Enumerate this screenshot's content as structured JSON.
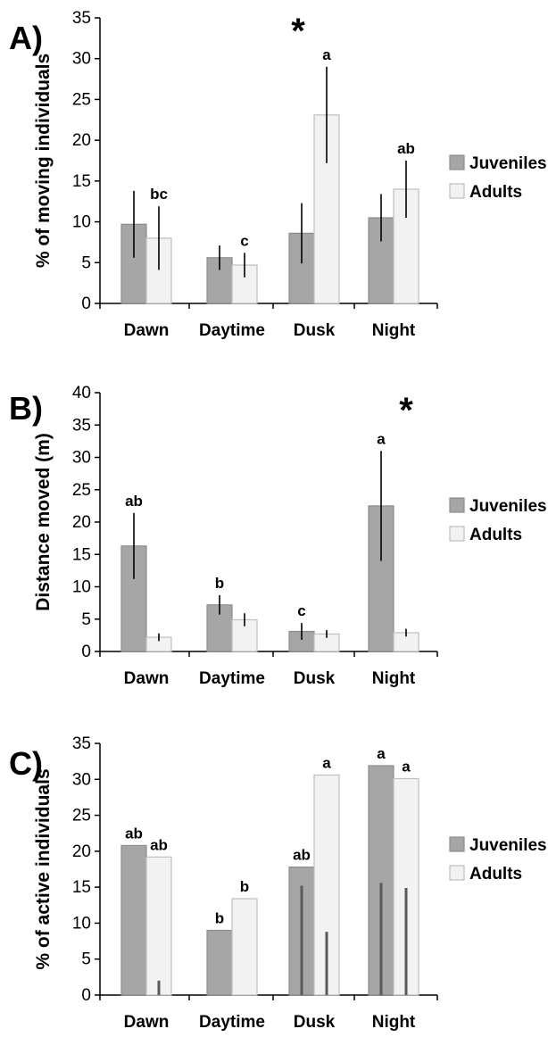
{
  "colors": {
    "juveniles": "#a6a6a6",
    "adults": "#f2f2f2",
    "adults_stroke": "#bfbfbf",
    "juv_stroke": "#8c8c8c",
    "error_bar": "#000000",
    "panel_c_bar": "#595959"
  },
  "chart_data": [
    {
      "type": "bar",
      "panel_label": "A)",
      "ylabel": "% of moving individuals",
      "categories": [
        "Dawn",
        "Daytime",
        "Dusk",
        "Night"
      ],
      "ylim": [
        0,
        35
      ],
      "yticks": [
        "0",
        "5",
        "10",
        "15",
        "20",
        "25",
        "30",
        "35"
      ],
      "legend_position": "right",
      "series": [
        {
          "name": "Juveniles",
          "values": [
            9.7,
            5.6,
            8.6,
            10.5
          ],
          "errors": [
            4.1,
            1.5,
            3.7,
            2.9
          ],
          "labels": [
            "",
            "",
            "",
            ""
          ]
        },
        {
          "name": "Adults",
          "values": [
            8.0,
            4.7,
            23.1,
            14.0
          ],
          "errors": [
            3.9,
            1.5,
            5.9,
            3.5
          ],
          "labels": [
            "bc",
            "c",
            "a",
            "ab"
          ]
        }
      ],
      "significance": [
        "",
        "",
        "*",
        ""
      ]
    },
    {
      "type": "bar",
      "panel_label": "B)",
      "ylabel": "Distance moved (m)",
      "categories": [
        "Dawn",
        "Daytime",
        "Dusk",
        "Night"
      ],
      "ylim": [
        0,
        40
      ],
      "yticks": [
        "0",
        "5",
        "10",
        "15",
        "20",
        "25",
        "30",
        "35",
        "40"
      ],
      "legend_position": "right",
      "series": [
        {
          "name": "Juveniles",
          "values": [
            16.3,
            7.2,
            3.1,
            22.5
          ],
          "errors": [
            5.1,
            1.5,
            1.3,
            8.5
          ],
          "labels": [
            "ab",
            "b",
            "c",
            "a"
          ]
        },
        {
          "name": "Adults",
          "values": [
            2.2,
            4.9,
            2.7,
            2.9
          ],
          "errors": [
            0.6,
            1.0,
            0.6,
            0.6
          ],
          "labels": [
            "",
            "",
            "",
            ""
          ]
        }
      ],
      "significance": [
        "",
        "",
        "",
        "*"
      ]
    },
    {
      "type": "bar",
      "panel_label": "C)",
      "ylabel": "% of active individuals",
      "categories": [
        "Dawn",
        "Daytime",
        "Dusk",
        "Night"
      ],
      "ylim": [
        0,
        35
      ],
      "yticks": [
        "0",
        "5",
        "10",
        "15",
        "20",
        "25",
        "30",
        "35"
      ],
      "legend_position": "right",
      "series": [
        {
          "name": "Juveniles",
          "values": [
            20.8,
            9.0,
            17.8,
            31.9
          ],
          "inner_bar": [
            null,
            null,
            15.2,
            15.6
          ],
          "labels": [
            "ab",
            "b",
            "ab",
            "a"
          ]
        },
        {
          "name": "Adults",
          "values": [
            19.2,
            13.4,
            30.6,
            30.1
          ],
          "inner_bar": [
            2.0,
            null,
            8.8,
            14.9
          ],
          "labels": [
            "ab",
            "b",
            "a",
            "a"
          ]
        }
      ]
    }
  ]
}
